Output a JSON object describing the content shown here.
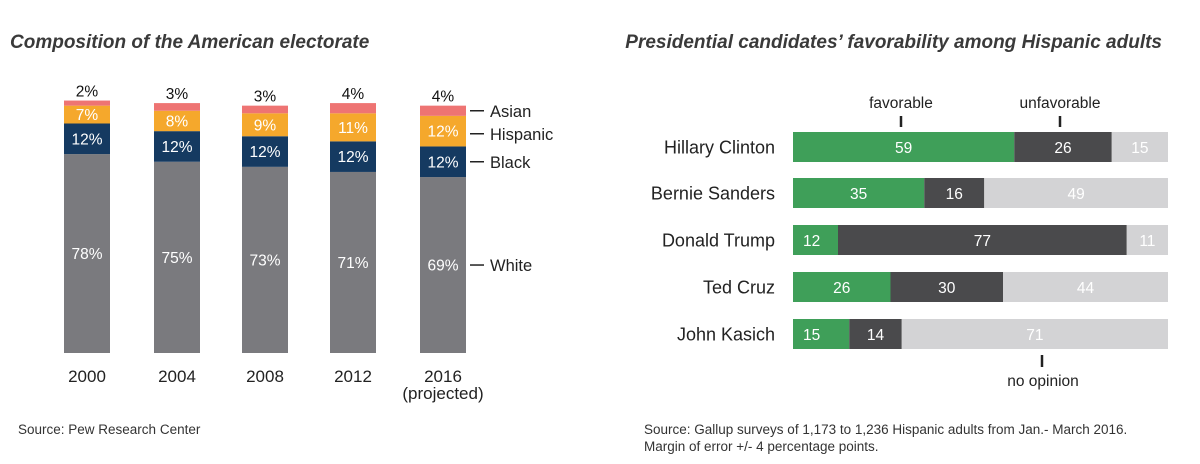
{
  "colors": {
    "white": "#7a7a7e",
    "black": "#153a61",
    "hispanic": "#f5a82c",
    "asian": "#ee7473",
    "favorable": "#3f9f59",
    "unfavorable": "#4a4a4c",
    "no_opinion": "#d3d3d5"
  },
  "chart_data": [
    {
      "type": "bar",
      "stacked": true,
      "title": "Composition of the American electorate",
      "categories": [
        "2000",
        "2004",
        "2008",
        "2012",
        "2016"
      ],
      "category_notes": [
        "",
        "",
        "",
        "",
        "(projected)"
      ],
      "series": [
        {
          "key": "white",
          "name": "White",
          "values": [
            78,
            75,
            73,
            71,
            69
          ],
          "labels": [
            "78%",
            "75%",
            "73%",
            "71%",
            "69%"
          ]
        },
        {
          "key": "black",
          "name": "Black",
          "values": [
            12,
            12,
            12,
            12,
            12
          ],
          "labels": [
            "12%",
            "12%",
            "12%",
            "12%",
            "12%"
          ]
        },
        {
          "key": "hispanic",
          "name": "Hispanic",
          "values": [
            7,
            8,
            9,
            11,
            12
          ],
          "labels": [
            "7%",
            "8%",
            "9%",
            "11%",
            "12%"
          ]
        },
        {
          "key": "asian",
          "name": "Asian",
          "values": [
            2,
            3,
            3,
            4,
            4
          ],
          "labels": [
            "2%",
            "3%",
            "3%",
            "4%",
            "4%"
          ]
        }
      ],
      "source": "Source: Pew Research Center"
    },
    {
      "type": "bar",
      "orientation": "horizontal",
      "stacked": true,
      "title": "Presidential candidates’ favorability among Hispanic adults",
      "categories": [
        "Hillary Clinton",
        "Bernie Sanders",
        "Donald Trump",
        "Ted Cruz",
        "John Kasich"
      ],
      "series": [
        {
          "key": "favorable",
          "name": "favorable",
          "values": [
            59,
            35,
            12,
            26,
            15
          ]
        },
        {
          "key": "unfavorable",
          "name": "unfavorable",
          "values": [
            26,
            16,
            77,
            30,
            14
          ]
        },
        {
          "key": "no_opinion",
          "name": "no opinion",
          "values": [
            15,
            49,
            11,
            44,
            71
          ]
        }
      ],
      "source_lines": [
        "Source: Gallup surveys of 1,173 to 1,236 Hispanic adults from Jan.- March 2016.",
        "Margin of error +/- 4 percentage points."
      ]
    }
  ]
}
